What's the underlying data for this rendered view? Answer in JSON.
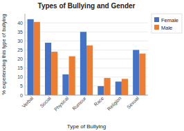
{
  "chart_data": {
    "type": "bar",
    "title": "Types of Bullying and Gender",
    "xlabel": "Type of Bullying",
    "ylabel": "% experiencing this type of bullying",
    "categories": [
      "Verbal",
      "Social",
      "Physical",
      "Rumour",
      "Race",
      "Religion",
      "Sexual"
    ],
    "series": [
      {
        "name": "Female",
        "color": "#4472C4",
        "values": [
          42,
          29,
          11.5,
          35,
          5,
          7.5,
          25
        ]
      },
      {
        "name": "Male",
        "color": "#ED7D31",
        "values": [
          40.5,
          24,
          21.5,
          27.5,
          9.5,
          9,
          23
        ]
      }
    ],
    "ylim": [
      0,
      45
    ],
    "yticks": [
      0,
      5,
      10,
      15,
      20,
      25,
      30,
      35,
      40
    ],
    "grid": true,
    "legend": "upper right"
  }
}
